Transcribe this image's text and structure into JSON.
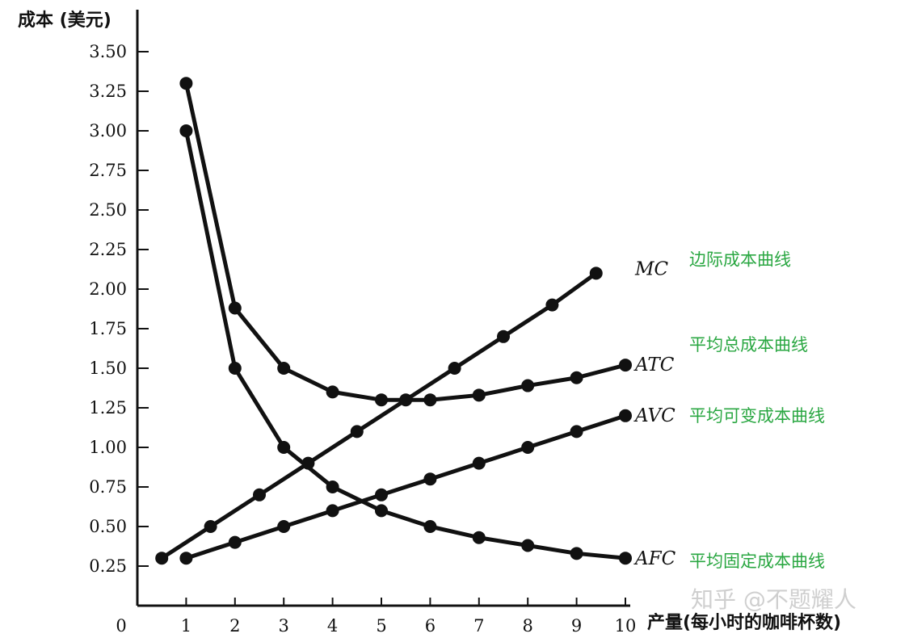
{
  "chart_data": {
    "type": "line",
    "ylabel": "成本 (美元)",
    "xlabel": "产量(每小时的咖啡杯数)",
    "origin_label": "0",
    "xlim": [
      0,
      10
    ],
    "ylim": [
      0,
      3.5
    ],
    "x_ticks": [
      "1",
      "2",
      "3",
      "4",
      "5",
      "6",
      "7",
      "8",
      "9",
      "10"
    ],
    "y_ticks": [
      "0.25",
      "0.50",
      "0.75",
      "1.00",
      "1.25",
      "1.50",
      "1.75",
      "2.00",
      "2.25",
      "2.50",
      "2.75",
      "3.00",
      "3.25",
      "3.50"
    ],
    "grid": false,
    "series": [
      {
        "name": "MC",
        "label": "边际成本曲线",
        "x": [
          0.5,
          1.5,
          2.5,
          3.5,
          4.5,
          5.5,
          6.5,
          7.5,
          8.5,
          9.4
        ],
        "y": [
          0.3,
          0.5,
          0.7,
          0.9,
          1.1,
          1.3,
          1.5,
          1.7,
          1.9,
          2.1
        ]
      },
      {
        "name": "ATC",
        "label": "平均总成本曲线",
        "x": [
          1,
          2,
          3,
          4,
          5,
          6,
          7,
          8,
          9,
          10
        ],
        "y": [
          3.3,
          1.88,
          1.5,
          1.35,
          1.3,
          1.3,
          1.33,
          1.39,
          1.44,
          1.52
        ]
      },
      {
        "name": "AVC",
        "label": "平均可变成本曲线",
        "x": [
          1,
          2,
          3,
          4,
          5,
          6,
          7,
          8,
          9,
          10
        ],
        "y": [
          0.3,
          0.4,
          0.5,
          0.6,
          0.7,
          0.8,
          0.9,
          1.0,
          1.1,
          1.2
        ]
      },
      {
        "name": "AFC",
        "label": "平均固定成本曲线",
        "x": [
          1,
          2,
          3,
          4,
          5,
          6,
          7,
          8,
          9,
          10
        ],
        "y": [
          3.0,
          1.5,
          1.0,
          0.75,
          0.6,
          0.5,
          0.43,
          0.38,
          0.33,
          0.3
        ]
      }
    ],
    "series_color": "#111111",
    "label_color": "#2aa742"
  },
  "watermark": "知乎 @不题耀人"
}
